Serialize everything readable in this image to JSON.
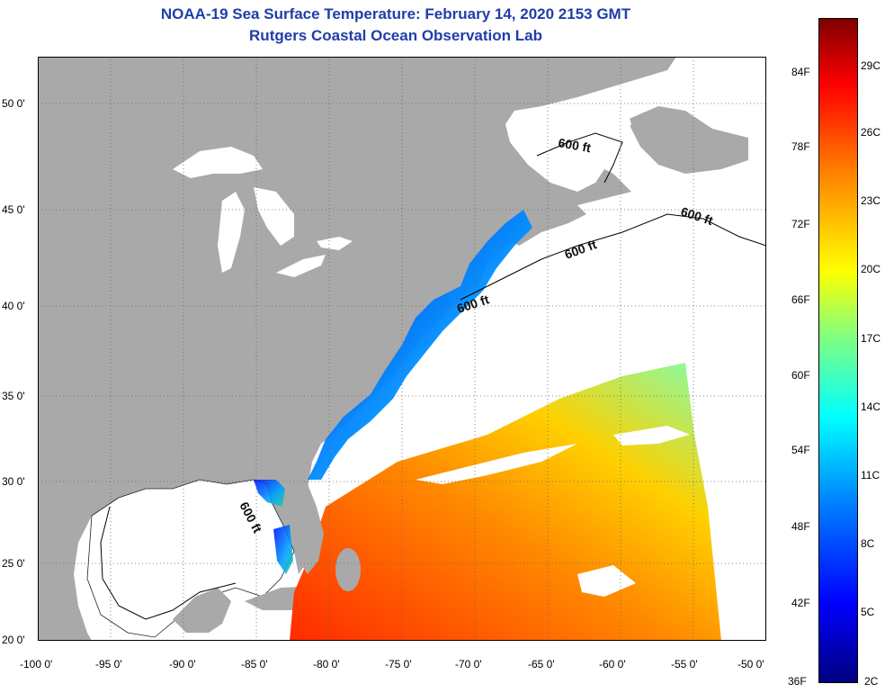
{
  "title": {
    "line1": "NOAA-19 Sea Surface Temperature:  February 14, 2020 2153 GMT",
    "line2": "Rutgers Coastal Ocean Observation Lab"
  },
  "map": {
    "lon_ticks": [
      "-100 0'",
      "-95 0'",
      "-90 0'",
      "-85 0'",
      "-80 0'",
      "-75 0'",
      "-70 0'",
      "-65 0'",
      "-60 0'",
      "-55 0'",
      "-50 0'"
    ],
    "lat_ticks": [
      "50 0'",
      "45 0'",
      "40 0'",
      "35 0'",
      "30 0'",
      "25 0'",
      "20 0'"
    ],
    "isobath_labels": [
      "600 ft",
      "600 ft",
      "600 ft",
      "600 ft",
      "600 ft"
    ],
    "colors": {
      "land": "#a9a9a9",
      "ocean_cloud": "#ffffff",
      "grid": "#666666"
    }
  },
  "colorbar": {
    "f_labels": [
      "84F",
      "78F",
      "72F",
      "66F",
      "60F",
      "54F",
      "48F",
      "42F",
      "36F"
    ],
    "c_labels": [
      "29C",
      "26C",
      "23C",
      "20C",
      "17C",
      "14C",
      "11C",
      "8C",
      "5C",
      "2C"
    ],
    "colors": [
      "#000080",
      "#0000ff",
      "#00ffff",
      "#ffff00",
      "#ff8000",
      "#ff0000",
      "#800000"
    ]
  }
}
